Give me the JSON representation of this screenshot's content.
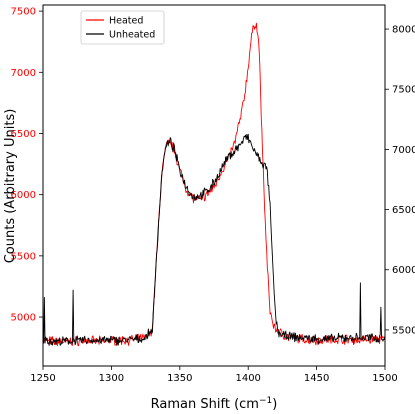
{
  "chart_data": {
    "type": "line",
    "xlabel_main": "Raman Shift (cm",
    "xlabel_sup": "−1",
    "xlabel_end": ")",
    "ylabel": "Counts (Arbitrary Units)",
    "xlim": [
      1250,
      1500
    ],
    "ylim_left": [
      4600,
      7550
    ],
    "ylim_right": [
      5200,
      8200
    ],
    "x_ticks": [
      1250,
      1300,
      1350,
      1400,
      1450,
      1500
    ],
    "y_ticks_left": [
      5000,
      5500,
      6000,
      6500,
      7000,
      7500
    ],
    "y_ticks_right": [
      5500,
      6000,
      6500,
      7000,
      7500,
      8000
    ],
    "grid": false,
    "legend_position": "top-left",
    "series": [
      {
        "name": "Heated",
        "color": "#ff0000",
        "axis": "left",
        "x": [
          1250,
          1260,
          1270,
          1280,
          1290,
          1300,
          1310,
          1320,
          1325,
          1330,
          1333,
          1337,
          1340,
          1343,
          1346,
          1350,
          1355,
          1360,
          1365,
          1370,
          1375,
          1380,
          1385,
          1390,
          1395,
          1398,
          1400,
          1402,
          1404,
          1406,
          1408,
          1410,
          1412,
          1414,
          1416,
          1418,
          1420,
          1425,
          1430,
          1440,
          1450,
          1460,
          1470,
          1480,
          1490,
          1500
        ],
        "y": [
          4810,
          4800,
          4800,
          4810,
          4800,
          4810,
          4810,
          4820,
          4830,
          4900,
          5500,
          6200,
          6400,
          6430,
          6370,
          6200,
          6040,
          5970,
          5960,
          6000,
          6060,
          6180,
          6280,
          6420,
          6660,
          6860,
          7050,
          7250,
          7380,
          7400,
          7200,
          6500,
          5900,
          5400,
          5050,
          4950,
          4900,
          4860,
          4830,
          4820,
          4810,
          4820,
          4820,
          4810,
          4820,
          4820
        ]
      },
      {
        "name": "Unheated",
        "color": "#000000",
        "axis": "left",
        "x": [
          1250,
          1260,
          1270,
          1280,
          1290,
          1300,
          1310,
          1320,
          1325,
          1330,
          1333,
          1337,
          1340,
          1343,
          1346,
          1350,
          1355,
          1360,
          1365,
          1370,
          1375,
          1380,
          1385,
          1390,
          1395,
          1398,
          1400,
          1403,
          1406,
          1409,
          1412,
          1414,
          1416,
          1418,
          1420,
          1422,
          1425,
          1430,
          1440,
          1450,
          1460,
          1470,
          1480,
          1490,
          1500
        ],
        "y": [
          4810,
          4800,
          4800,
          4810,
          4810,
          4810,
          4810,
          4820,
          4830,
          4900,
          5500,
          6200,
          6400,
          6430,
          6370,
          6200,
          6060,
          5980,
          5990,
          6030,
          6100,
          6200,
          6300,
          6360,
          6420,
          6470,
          6460,
          6390,
          6330,
          6270,
          6240,
          6180,
          5900,
          5400,
          5000,
          4880,
          4850,
          4840,
          4830,
          4820,
          4820,
          4830,
          4830,
          4830,
          4830
        ]
      }
    ],
    "spikes_left": [
      {
        "x": 1251,
        "y": 5160
      },
      {
        "x": 1272,
        "y": 5220
      },
      {
        "x": 1482,
        "y": 5280
      },
      {
        "x": 1497,
        "y": 5080
      }
    ]
  }
}
